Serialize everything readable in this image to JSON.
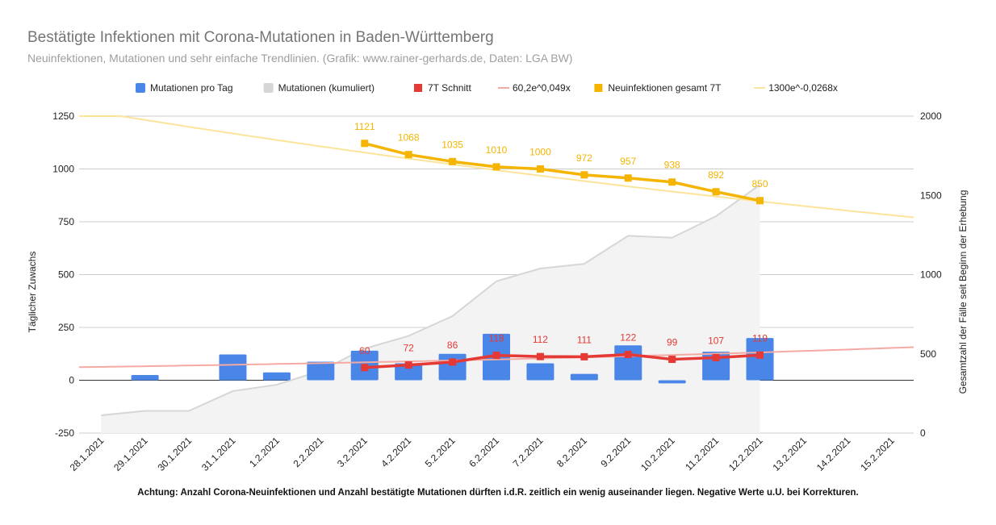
{
  "chart_data": {
    "type": "bar",
    "title": "Bestätigte Infektionen mit Corona-Mutationen in Baden-Württemberg",
    "subtitle": "Neuinfektionen, Mutationen und sehr einfache Trendlinien.  (Grafik: www.rainer-gerhards.de, Daten: LGA BW)",
    "footnote": "Achtung: Anzahl Corona-Neuinfektionen und Anzahl bestätigte Mutationen dürften i.d.R. zeitlich ein wenig auseinander liegen. Negative Werte u.U. bei Korrekturen.",
    "ylabel": "Täglicher Zuwachs",
    "y2label": "Gesamtzahl der Fälle seit Beginn der Erhebung",
    "ylim": [
      -250,
      1250
    ],
    "y2lim": [
      0,
      2000
    ],
    "yticks": [
      1250,
      1000,
      750,
      500,
      250,
      0,
      -250
    ],
    "y2ticks": [
      2000,
      1500,
      1000,
      500,
      0
    ],
    "grid": true,
    "legend_position": "top",
    "categories": [
      "28.1.2021",
      "29.1.2021",
      "30.1.2021",
      "31.1.2021",
      "1.2.2021",
      "2.2.2021",
      "3.2.2021",
      "4.2.2021",
      "5.2.2021",
      "6.2.2021",
      "7.2.2021",
      "8.2.2021",
      "9.2.2021",
      "10.2.2021",
      "11.2.2021",
      "12.2.2021",
      "13.2.2021",
      "14.2.2021",
      "15.2.2021"
    ],
    "series": [
      {
        "name": "Mutationen pro Tag",
        "kind": "bar",
        "axis": "left",
        "color": "#4a86e8",
        "values": [
          null,
          25,
          null,
          122,
          37,
          88,
          140,
          80,
          125,
          220,
          80,
          30,
          165,
          -15,
          135,
          200,
          null,
          null,
          null
        ]
      },
      {
        "name": "Mutationen (kumuliert)",
        "kind": "area",
        "axis": "right",
        "color": "#d6d6d6",
        "values": [
          112,
          140,
          140,
          265,
          305,
          393,
          533,
          613,
          738,
          958,
          1038,
          1068,
          1245,
          1233,
          1368,
          1568,
          null,
          null,
          null
        ]
      },
      {
        "name": "7T Schnitt",
        "kind": "line",
        "axis": "left",
        "color": "#e53935",
        "labels": true,
        "values": [
          null,
          null,
          null,
          null,
          null,
          null,
          60,
          72,
          86,
          118,
          112,
          111,
          122,
          99,
          107,
          119,
          null,
          null,
          null
        ]
      },
      {
        "name": "60,2e^0,049x",
        "kind": "trend",
        "axis": "left",
        "color": "#f4aaa3",
        "x0_value": 60.2,
        "rate": 0.049
      },
      {
        "name": "Neuinfektionen gesamt 7T",
        "kind": "line",
        "axis": "left",
        "color": "#f4b400",
        "labels": true,
        "values": [
          null,
          null,
          null,
          null,
          null,
          null,
          1121,
          1068,
          1035,
          1010,
          1000,
          972,
          957,
          938,
          892,
          850,
          null,
          null,
          null
        ]
      },
      {
        "name": "1300e^-0,0268x",
        "kind": "trend",
        "axis": "left",
        "color": "#fce49a",
        "x0_value": 1300,
        "rate": -0.0268
      }
    ]
  }
}
